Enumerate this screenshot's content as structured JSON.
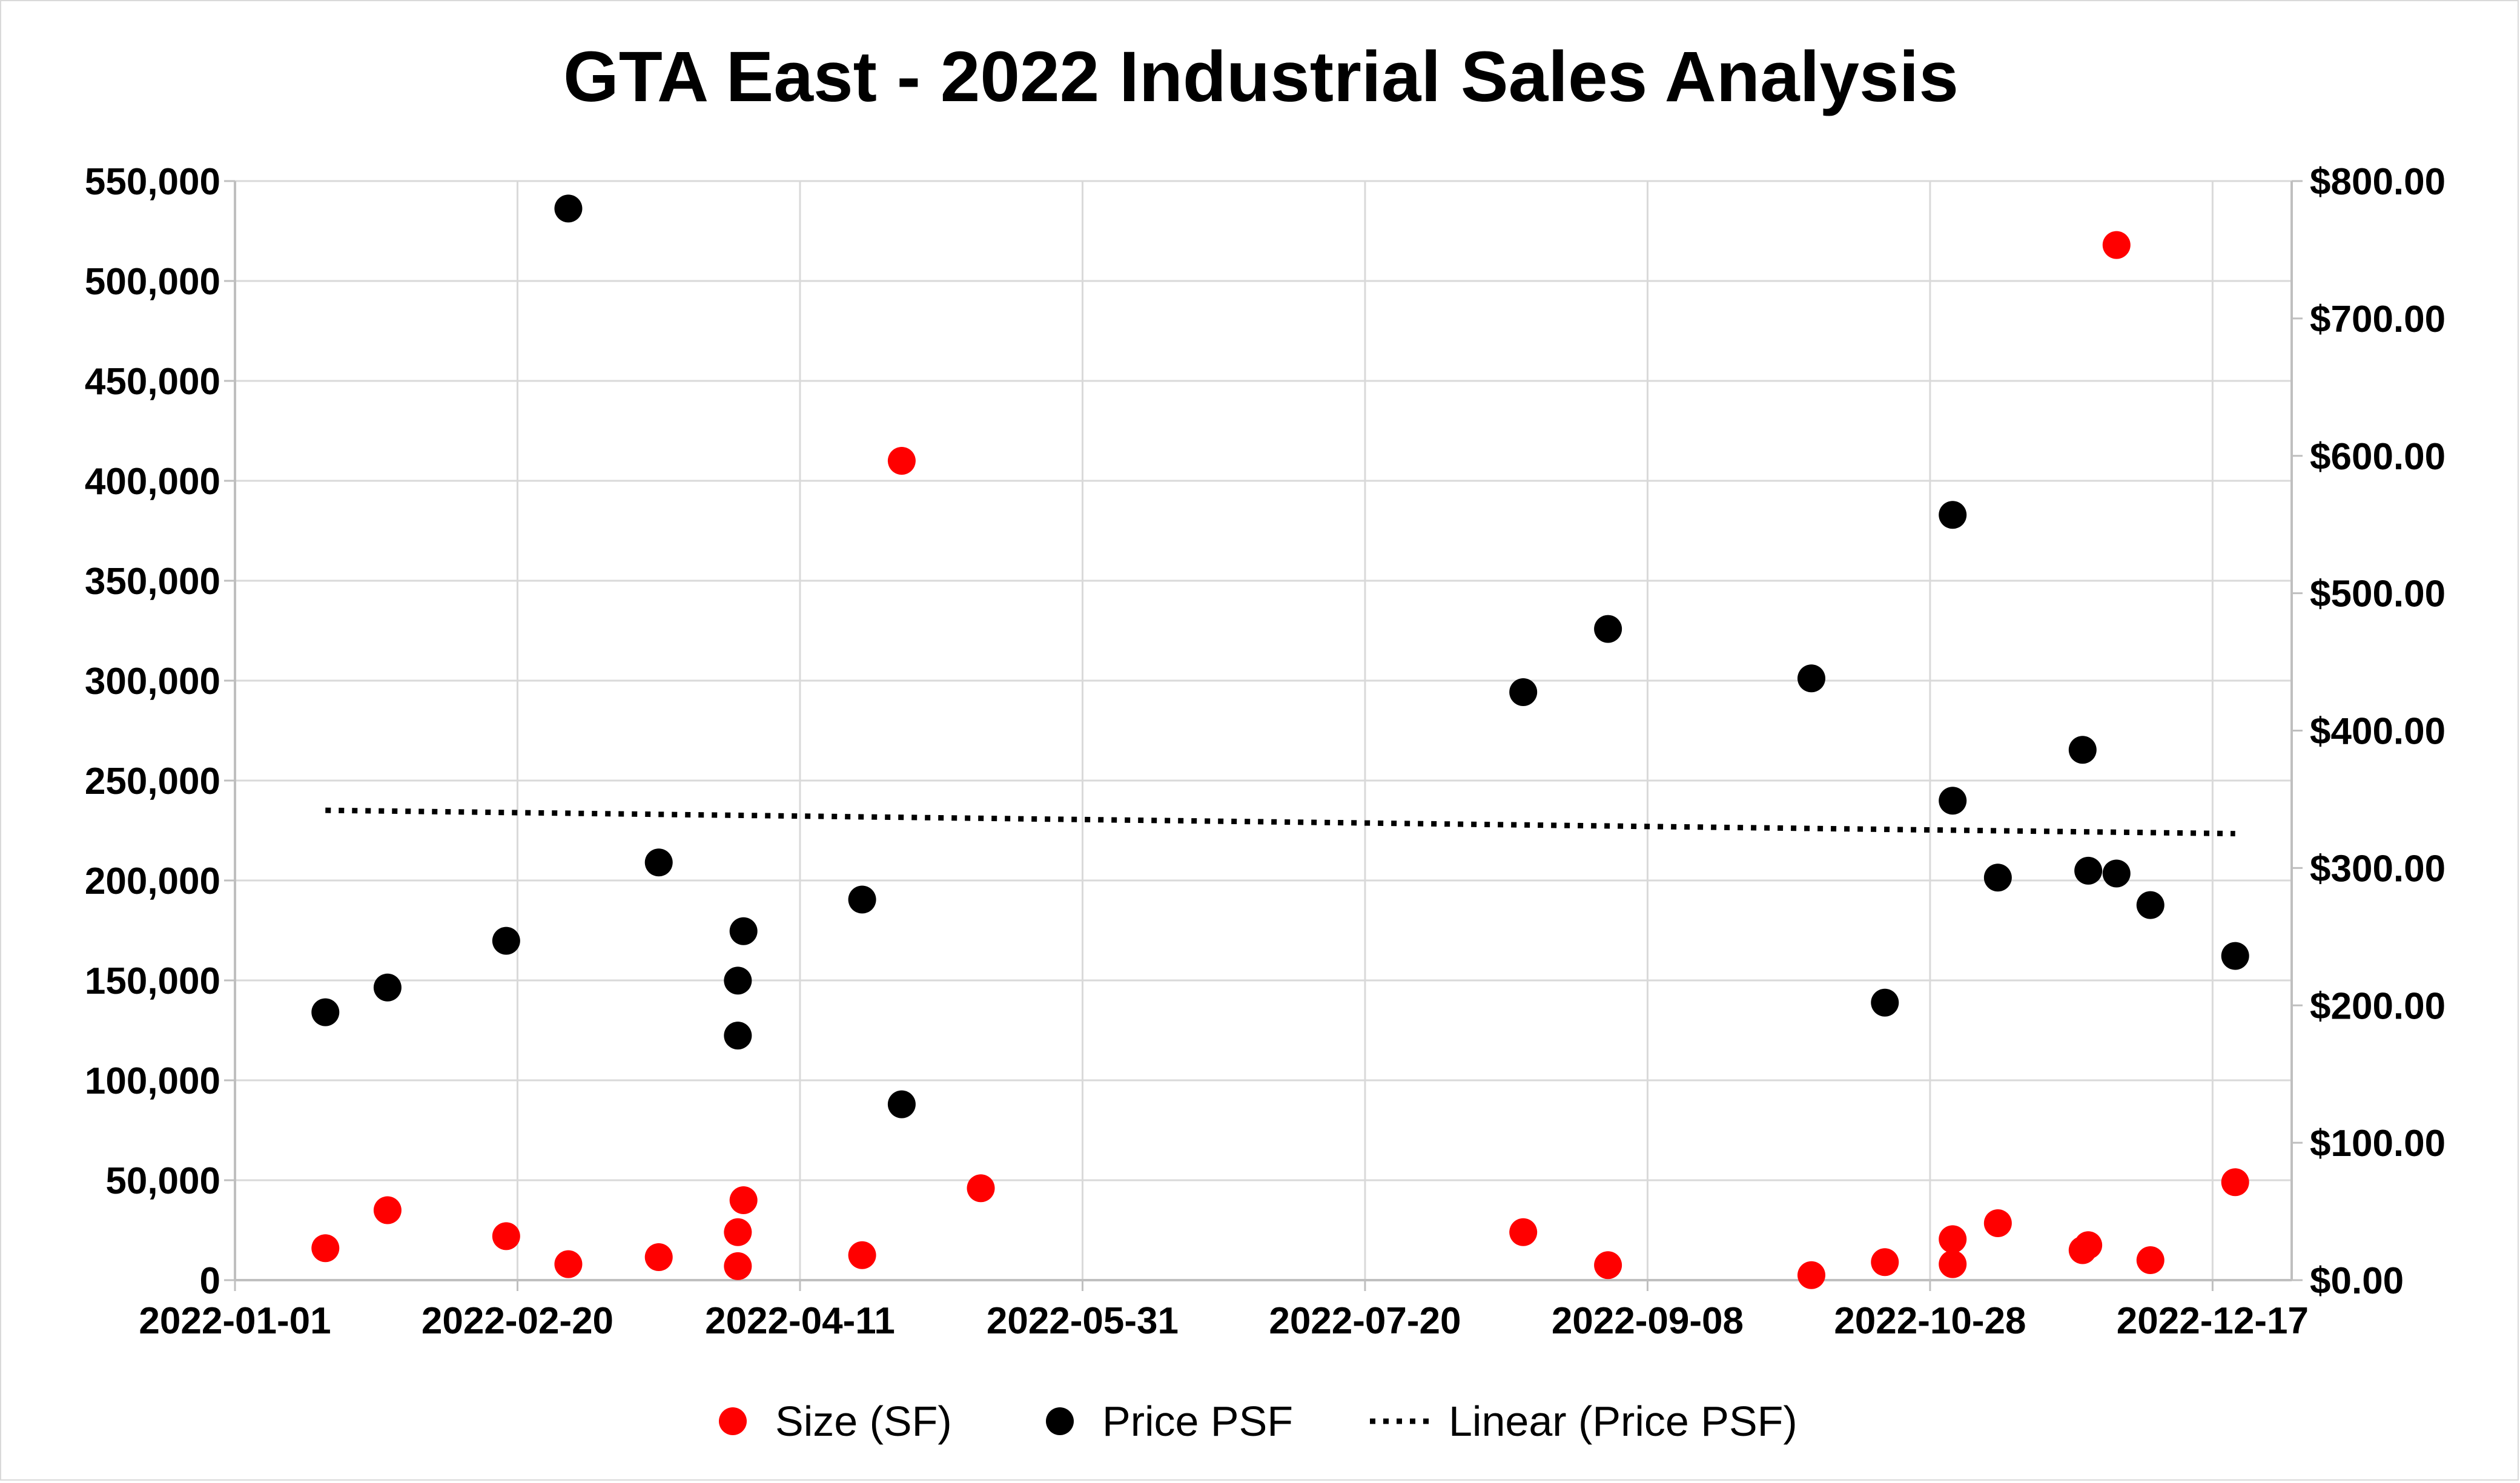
{
  "chart_data": {
    "type": "scatter",
    "title": "GTA East - 2022 Industrial Sales Analysis",
    "x_axis": {
      "type": "date",
      "range": [
        "2022-01-01",
        "2022-12-31"
      ],
      "ticks": [
        "2022-01-01",
        "2022-02-20",
        "2022-04-11",
        "2022-05-31",
        "2022-07-20",
        "2022-09-08",
        "2022-10-28",
        "2022-12-17"
      ],
      "grid": true
    },
    "y_axis_left": {
      "range": [
        0,
        550000
      ],
      "ticks": [
        0,
        50000,
        100000,
        150000,
        200000,
        250000,
        300000,
        350000,
        400000,
        450000,
        500000,
        550000
      ],
      "tick_labels": [
        "0",
        "50,000",
        "100,000",
        "150,000",
        "200,000",
        "250,000",
        "300,000",
        "350,000",
        "400,000",
        "450,000",
        "500,000",
        "550,000"
      ],
      "grid": true
    },
    "y_axis_right": {
      "range": [
        0,
        800
      ],
      "ticks": [
        0,
        100,
        200,
        300,
        400,
        500,
        600,
        700,
        800
      ],
      "tick_labels": [
        "$0.00",
        "$100.00",
        "$200.00",
        "$300.00",
        "$400.00",
        "$500.00",
        "$600.00",
        "$700.00",
        "$800.00"
      ]
    },
    "legend": {
      "position": "bottom",
      "items": [
        "Size (SF)",
        "Price PSF",
        "Linear (Price PSF)"
      ]
    },
    "series": [
      {
        "name": "Size (SF)",
        "axis": "left",
        "color": "#ff0000",
        "marker": "circle",
        "points": [
          {
            "x": "2022-01-17",
            "y": 16000
          },
          {
            "x": "2022-01-28",
            "y": 35000
          },
          {
            "x": "2022-02-18",
            "y": 22000
          },
          {
            "x": "2022-03-01",
            "y": 8000
          },
          {
            "x": "2022-03-17",
            "y": 11500
          },
          {
            "x": "2022-03-31",
            "y": 7000
          },
          {
            "x": "2022-03-31",
            "y": 24000
          },
          {
            "x": "2022-04-01",
            "y": 40000
          },
          {
            "x": "2022-04-22",
            "y": 12500
          },
          {
            "x": "2022-04-29",
            "y": 410000
          },
          {
            "x": "2022-05-13",
            "y": 46000
          },
          {
            "x": "2022-08-17",
            "y": 24000
          },
          {
            "x": "2022-09-01",
            "y": 7500
          },
          {
            "x": "2022-10-07",
            "y": 2500
          },
          {
            "x": "2022-10-20",
            "y": 9000
          },
          {
            "x": "2022-11-01",
            "y": 20500
          },
          {
            "x": "2022-11-01",
            "y": 8000
          },
          {
            "x": "2022-11-09",
            "y": 28500
          },
          {
            "x": "2022-11-24",
            "y": 15000
          },
          {
            "x": "2022-11-25",
            "y": 17500
          },
          {
            "x": "2022-11-30",
            "y": 518000
          },
          {
            "x": "2022-12-06",
            "y": 10000
          },
          {
            "x": "2022-12-21",
            "y": 49000
          }
        ]
      },
      {
        "name": "Price PSF",
        "axis": "right",
        "color": "#000000",
        "marker": "circle",
        "points": [
          {
            "x": "2022-01-17",
            "y": 195
          },
          {
            "x": "2022-01-28",
            "y": 213
          },
          {
            "x": "2022-02-18",
            "y": 247
          },
          {
            "x": "2022-03-01",
            "y": 780
          },
          {
            "x": "2022-03-17",
            "y": 304
          },
          {
            "x": "2022-03-31",
            "y": 218
          },
          {
            "x": "2022-03-31",
            "y": 178
          },
          {
            "x": "2022-04-01",
            "y": 254
          },
          {
            "x": "2022-04-22",
            "y": 277
          },
          {
            "x": "2022-04-29",
            "y": 128
          },
          {
            "x": "2022-08-17",
            "y": 428
          },
          {
            "x": "2022-09-01",
            "y": 474
          },
          {
            "x": "2022-10-07",
            "y": 438
          },
          {
            "x": "2022-10-20",
            "y": 202
          },
          {
            "x": "2022-11-01",
            "y": 557
          },
          {
            "x": "2022-11-01",
            "y": 349
          },
          {
            "x": "2022-11-09",
            "y": 293
          },
          {
            "x": "2022-11-24",
            "y": 386
          },
          {
            "x": "2022-11-25",
            "y": 298
          },
          {
            "x": "2022-11-30",
            "y": 296
          },
          {
            "x": "2022-12-06",
            "y": 273
          },
          {
            "x": "2022-12-21",
            "y": 236
          }
        ]
      },
      {
        "name": "Linear (Price PSF)",
        "axis": "right",
        "type": "trendline",
        "style": "dotted",
        "color": "#000000",
        "points": [
          {
            "x": "2022-01-17",
            "y": 342
          },
          {
            "x": "2022-12-21",
            "y": 325
          }
        ]
      }
    ]
  }
}
